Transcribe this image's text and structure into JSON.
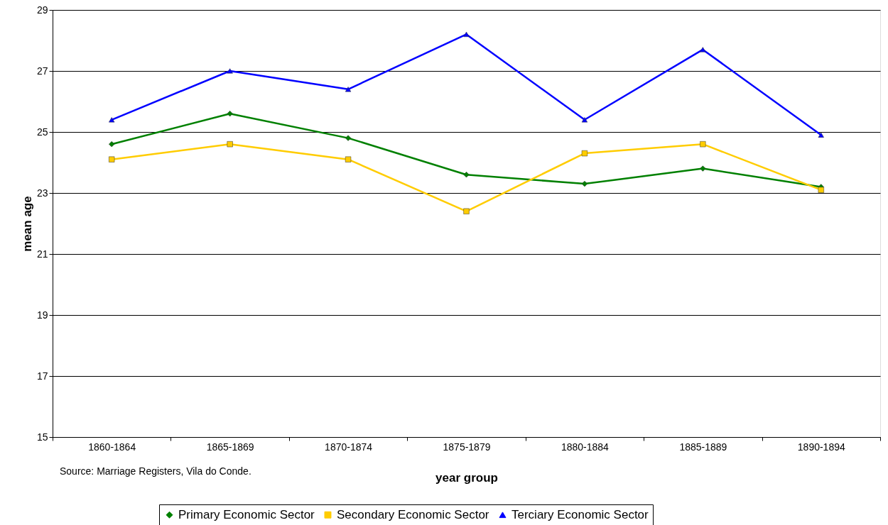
{
  "chart_data": {
    "type": "line",
    "xlabel": "year group",
    "ylabel": "mean age",
    "categories": [
      "1860-1864",
      "1865-1869",
      "1870-1874",
      "1875-1879",
      "1880-1884",
      "1885-1889",
      "1890-1894"
    ],
    "series": [
      {
        "name": "Primary Economic Sector",
        "color": "#008000",
        "marker": "diamond",
        "values": [
          24.6,
          25.6,
          24.8,
          23.6,
          23.3,
          23.8,
          23.2
        ]
      },
      {
        "name": "Secondary Economic Sector",
        "color": "#ffcc00",
        "marker": "square",
        "values": [
          24.1,
          24.6,
          24.1,
          22.4,
          24.3,
          24.6,
          23.1
        ]
      },
      {
        "name": "Terciary Economic Sector",
        "color": "#0000ff",
        "marker": "triangle",
        "values": [
          25.4,
          27.0,
          26.4,
          28.2,
          25.4,
          27.7,
          24.9
        ]
      }
    ],
    "ylim": [
      15,
      29
    ],
    "yticks": [
      15,
      17,
      19,
      21,
      23,
      25,
      27,
      29
    ],
    "grid": "y",
    "legend": "bottom",
    "line_style": "solid",
    "annotations": [
      "Source: Marriage Registers, Vila do Conde."
    ]
  }
}
